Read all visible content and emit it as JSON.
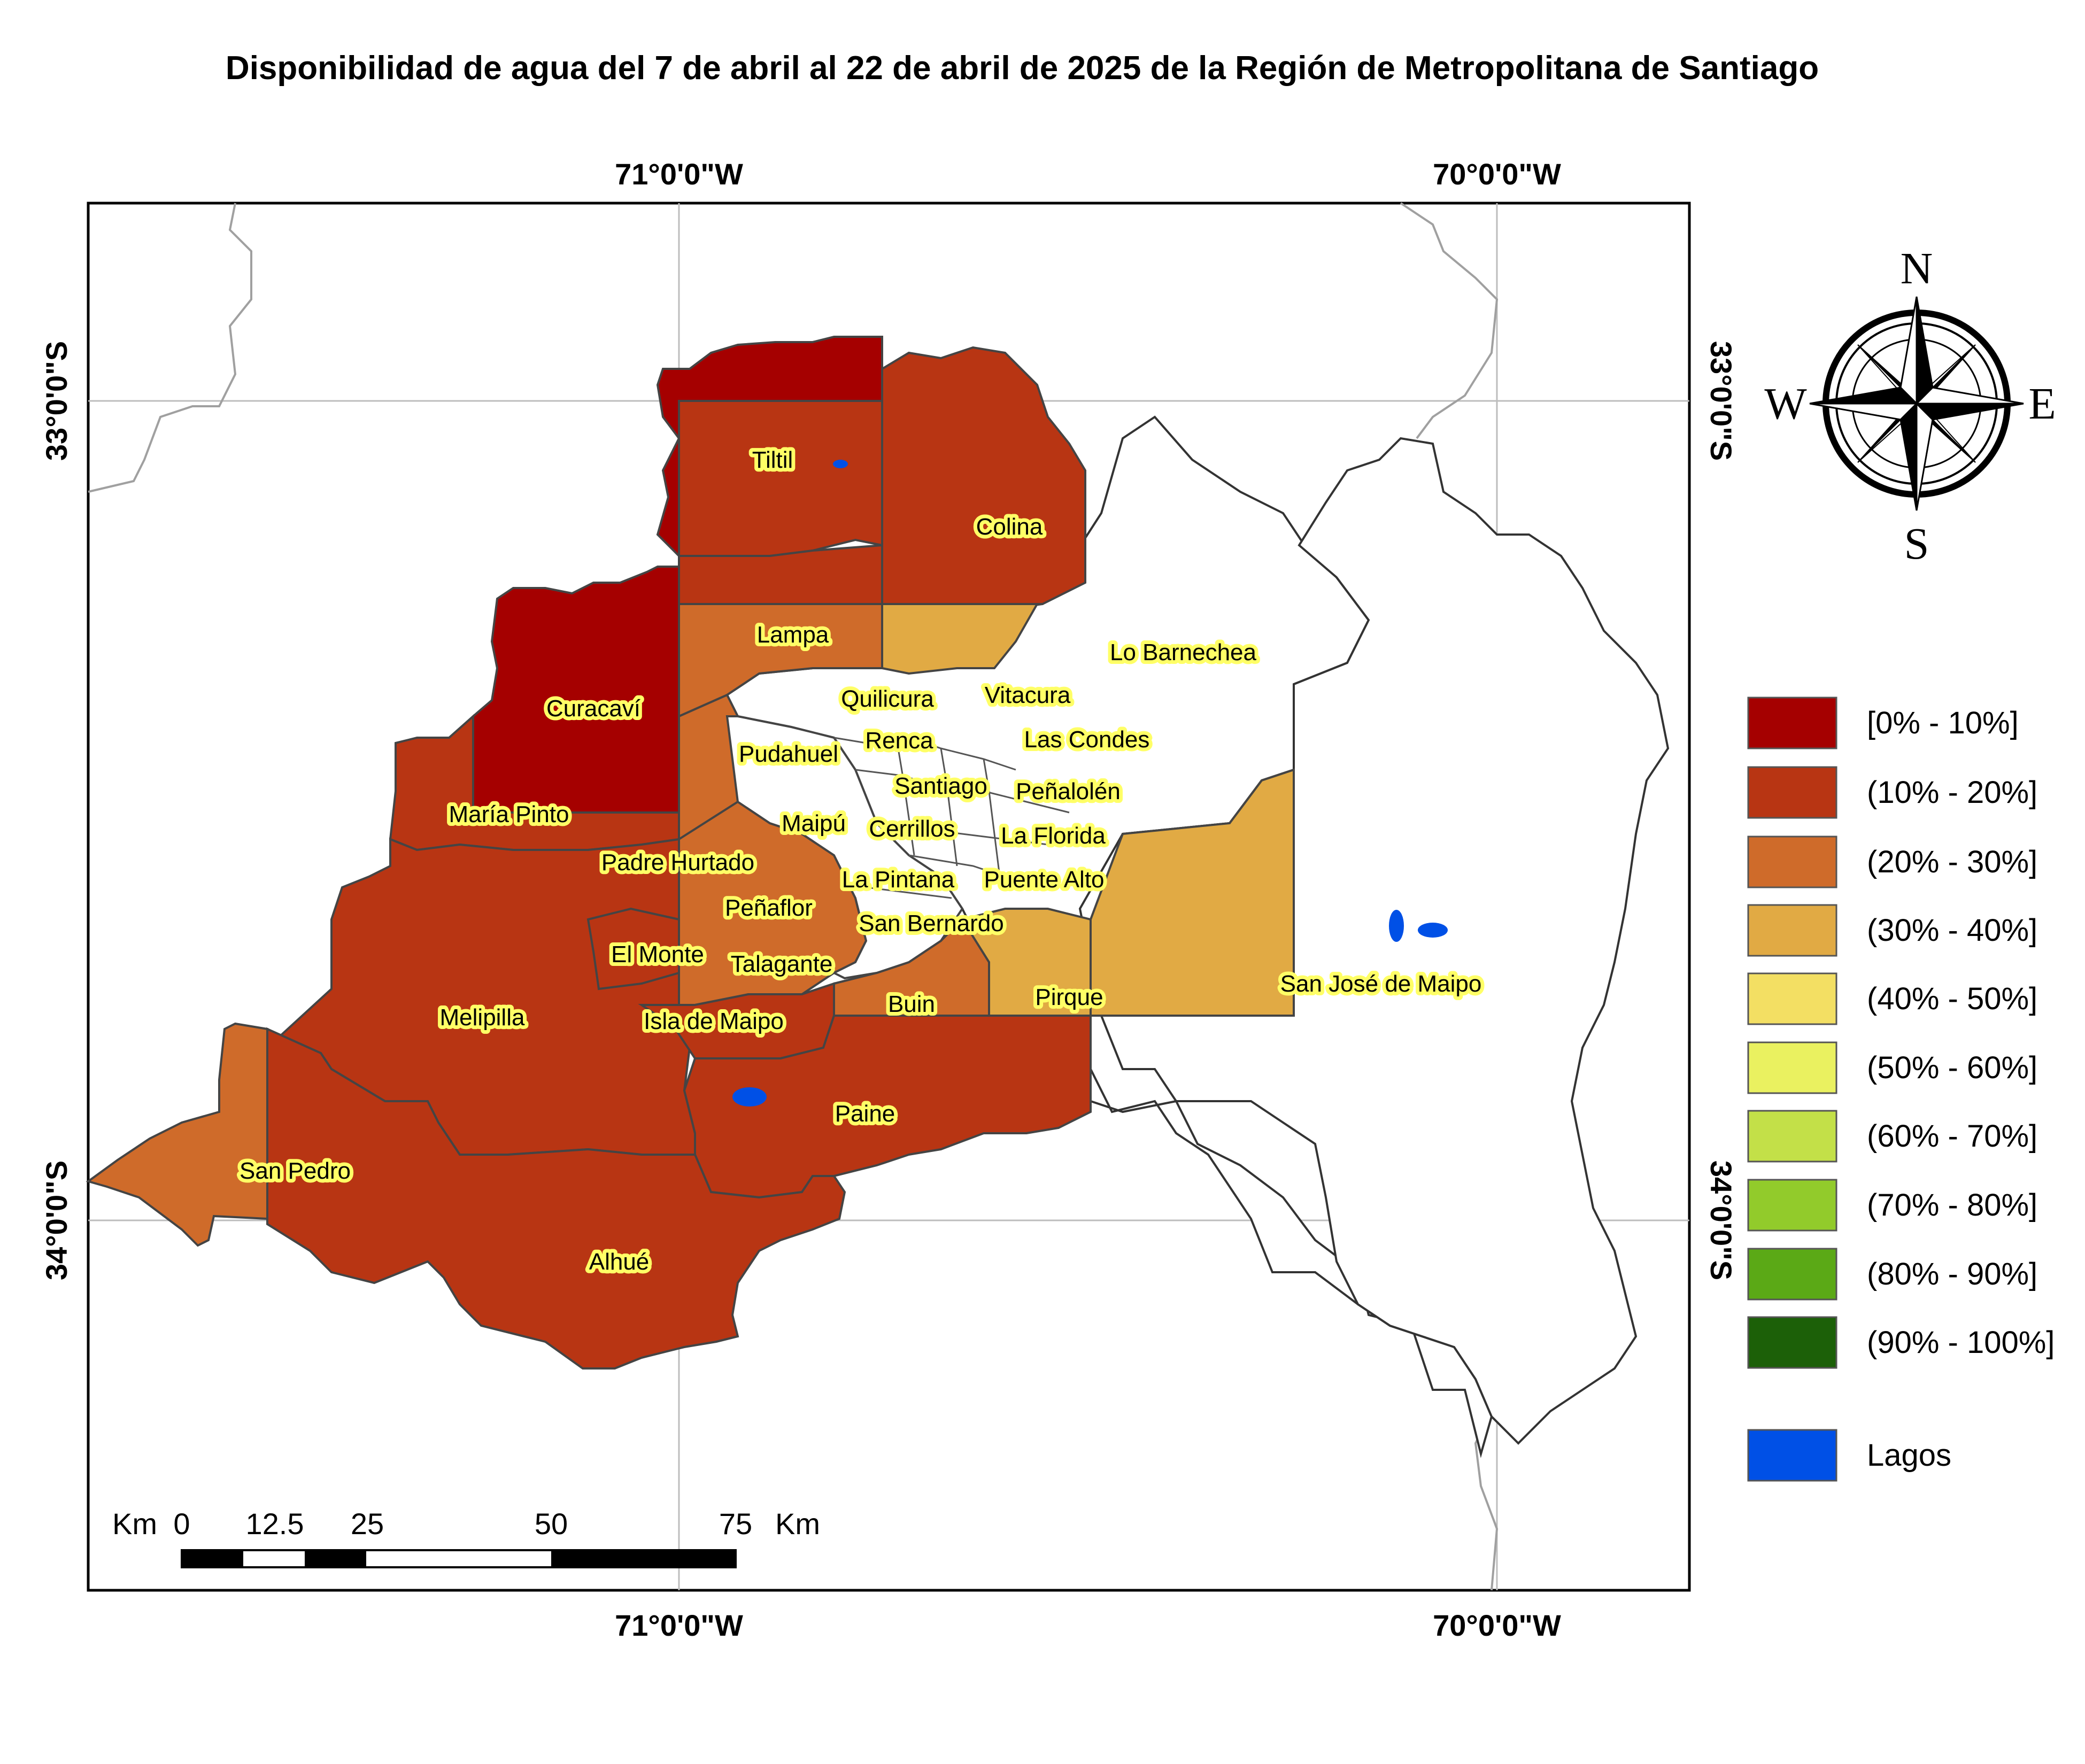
{
  "title": "Disponibilidad de agua del 7 de abril al 22 de abril de 2025 de la Región de Metropolitana de Santiago",
  "graticule": {
    "top": [
      "71°0'0\"W",
      "70°0'0\"W"
    ],
    "bottom": [
      "71°0'0\"W",
      "70°0'0\"W"
    ],
    "left": [
      "33°0'0\"S",
      "34°0'0\"S"
    ],
    "right": [
      "33°0'0\"S",
      "34°0'0\"S"
    ]
  },
  "north_arrow": {
    "n": "N",
    "s": "S",
    "e": "E",
    "w": "W"
  },
  "legend": {
    "items": [
      {
        "label": "[0% - 10%]",
        "color": "#a50000"
      },
      {
        "label": "(10% - 20%]",
        "color": "#b83513"
      },
      {
        "label": "(20% - 30%]",
        "color": "#cf6b2a"
      },
      {
        "label": "(30% - 40%]",
        "color": "#e1aa44"
      },
      {
        "label": "(40% - 50%]",
        "color": "#f3df63"
      },
      {
        "label": "(50% - 60%]",
        "color": "#eaf160"
      },
      {
        "label": "(60% - 70%]",
        "color": "#c3e048"
      },
      {
        "label": "(70% - 80%]",
        "color": "#92cb2b"
      },
      {
        "label": "(80% - 90%]",
        "color": "#5ba916"
      },
      {
        "label": "(90% - 100%]",
        "color": "#1c6008"
      }
    ],
    "lakes_label": "Lagos",
    "lakes_color": "#0050e6"
  },
  "scale_bar": {
    "unit_left": "Km",
    "unit_right": "Km",
    "ticks": [
      "0",
      "12.5",
      "25",
      "50",
      "75"
    ]
  },
  "communes": [
    "Tiltil",
    "Colina",
    "Lampa",
    "Lo Barnechea",
    "Curacaví",
    "Quilicura",
    "Vitacura",
    "Renca",
    "Las Condes",
    "Pudahuel",
    "Santiago",
    "Peñalolén",
    "María Pinto",
    "Maipú",
    "Cerrillos",
    "La Florida",
    "Padre Hurtado",
    "La Pintana",
    "Puente Alto",
    "Peñaflor",
    "San Bernardo",
    "El Monte",
    "Talagante",
    "San José de Maipo",
    "Buin",
    "Pirque",
    "Melipilla",
    "Isla de Maipo",
    "Paine",
    "San Pedro",
    "Alhué"
  ]
}
